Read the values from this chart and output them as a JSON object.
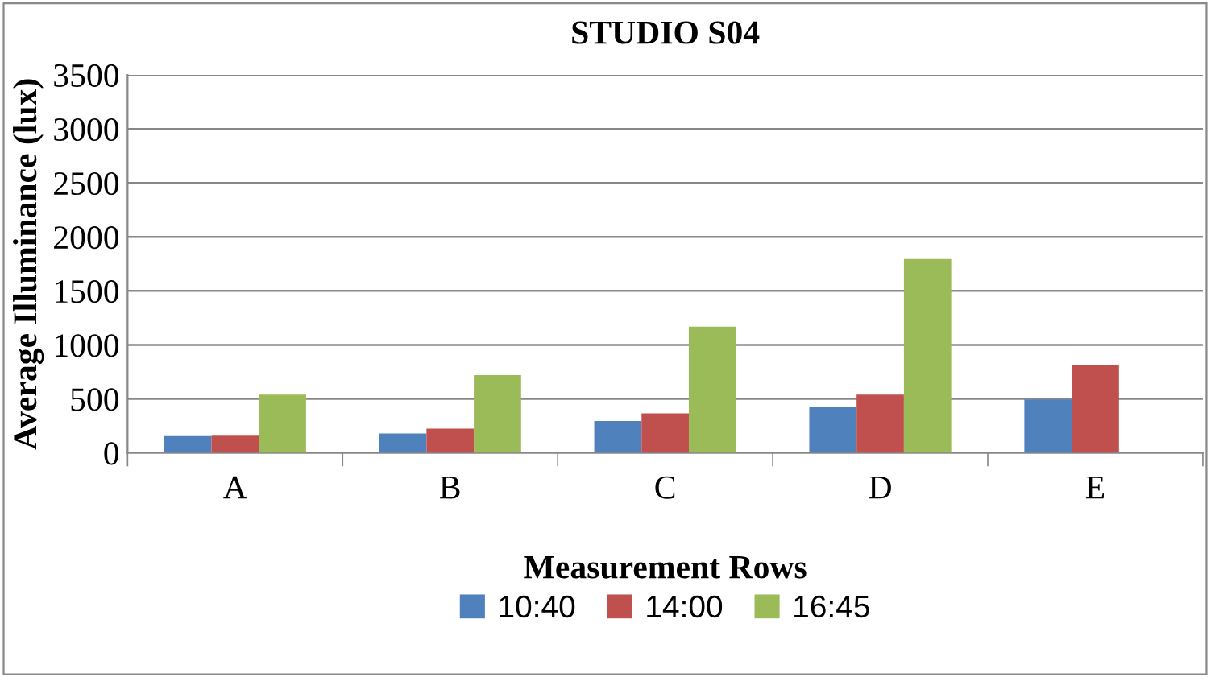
{
  "chart_data": {
    "type": "bar",
    "title": "STUDIO S04",
    "xlabel": "Measurement Rows",
    "ylabel": "Average Illuminance (lux)",
    "categories": [
      "A",
      "B",
      "C",
      "D",
      "E"
    ],
    "series": [
      {
        "name": "10:40",
        "color": "#4f81bd",
        "values": [
          155,
          180,
          295,
          425,
          495
        ]
      },
      {
        "name": "14:00",
        "color": "#c0504d",
        "values": [
          160,
          225,
          365,
          540,
          815
        ]
      },
      {
        "name": "16:45",
        "color": "#9bbb59",
        "values": [
          540,
          720,
          1170,
          1795,
          null
        ]
      }
    ],
    "ylim": [
      0,
      3500
    ],
    "yticks": [
      0,
      500,
      1000,
      1500,
      2000,
      2500,
      3000,
      3500
    ],
    "grid": "y",
    "legend": "bottom"
  }
}
